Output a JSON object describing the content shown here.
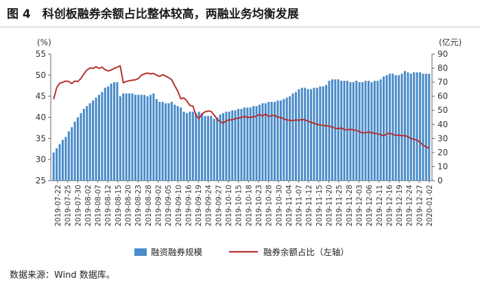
{
  "figure": {
    "title": "图 4　科创板融券余额占比整体较高，两融业务均衡发展",
    "source": "数据来源：Wind 数据库。"
  },
  "colors": {
    "bar": "#4a8cc9",
    "bar_edge": "#2f6fae",
    "line": "#b5312f",
    "axis": "#666666"
  },
  "chart_data": {
    "type": "bar+line",
    "x_tick_labels": [
      "2019-07-22",
      "2019-07-25",
      "2019-07-30",
      "2019-08-02",
      "2019-08-07",
      "2019-08-12",
      "2019-08-15",
      "2019-08-20",
      "2019-08-23",
      "2019-08-28",
      "2019-09-02",
      "2019-09-05",
      "2019-09-10",
      "2019-09-16",
      "2019-09-19",
      "2019-09-24",
      "2019-09-27",
      "2019-10-10",
      "2019-10-15",
      "2019-10-18",
      "2019-10-23",
      "2019-10-28",
      "2019-10-30",
      "2019-11-04",
      "2019-11-07",
      "2019-11-12",
      "2019-11-15",
      "2019-11-20",
      "2019-11-25",
      "2019-11-28",
      "2019-12-03",
      "2019-12-06",
      "2019-12-11",
      "2019-12-16",
      "2019-12-19",
      "2019-12-24",
      "2019-12-27",
      "2020-01-02"
    ],
    "left_axis": {
      "unit": "(%)",
      "min": 25,
      "max": 55,
      "ticks": [
        25,
        30,
        35,
        40,
        45,
        50,
        55
      ]
    },
    "right_axis": {
      "unit": "(亿元)",
      "min": 0,
      "max": 90,
      "ticks": [
        0,
        10,
        20,
        30,
        40,
        50,
        60,
        70,
        80,
        90
      ]
    },
    "series": [
      {
        "name": "融资融券规模",
        "type": "bar",
        "axis": "right",
        "values": [
          20,
          23,
          26,
          29,
          31,
          35,
          38,
          42,
          45,
          48,
          51,
          53,
          55,
          57,
          59,
          61,
          63,
          66,
          67,
          69,
          70,
          70,
          60,
          62,
          62,
          62,
          62,
          61,
          61,
          61,
          61,
          60,
          61,
          62,
          58,
          56,
          56,
          55,
          55,
          56,
          54,
          53,
          52,
          49,
          48,
          49,
          49,
          48,
          49,
          48,
          46,
          46,
          46,
          44,
          45,
          47,
          48,
          49,
          49,
          50,
          50,
          51,
          51,
          52,
          52,
          52,
          53,
          53,
          54,
          55,
          55,
          56,
          56,
          56,
          57,
          57,
          58,
          59,
          60,
          62,
          63,
          65,
          66,
          66,
          65,
          65,
          66,
          66,
          67,
          67,
          68,
          71,
          72,
          72,
          72,
          71,
          71,
          71,
          70,
          70,
          71,
          70,
          70,
          71,
          71,
          70,
          71,
          71,
          72,
          74,
          75,
          76,
          76,
          75,
          75,
          76,
          78,
          77,
          76,
          77,
          77,
          77,
          76,
          76,
          76
        ],
        "estimated": true
      },
      {
        "name": "融券余额占比（左轴）",
        "type": "line",
        "axis": "left",
        "values": [
          44.3,
          47.0,
          48.1,
          48.3,
          48.6,
          48.5,
          48.0,
          48.6,
          48.5,
          49.2,
          50.3,
          51.2,
          51.7,
          51.6,
          52.0,
          51.6,
          51.9,
          51.3,
          51.0,
          51.2,
          51.6,
          51.9,
          52.2,
          48.2,
          48.5,
          48.7,
          48.8,
          48.9,
          49.2,
          50.0,
          50.3,
          50.5,
          50.3,
          50.4,
          50.0,
          49.7,
          50.1,
          49.8,
          49.4,
          48.9,
          47.5,
          46.2,
          44.4,
          44.6,
          43.9,
          42.8,
          42.7,
          40.5,
          39.7,
          40.8,
          41.3,
          41.5,
          41.4,
          40.6,
          39.5,
          39.0,
          38.6,
          39.2,
          39.4,
          39.4,
          39.7,
          39.8,
          40.0,
          40.2,
          40.0,
          40.0,
          40.1,
          40.3,
          40.7,
          40.3,
          40.8,
          40.2,
          40.4,
          40.5,
          40.0,
          40.0,
          39.6,
          39.4,
          39.3,
          39.2,
          39.4,
          39.3,
          39.5,
          39.4,
          39.1,
          38.8,
          38.6,
          38.3,
          38.2,
          38.1,
          38.0,
          37.9,
          37.7,
          37.4,
          37.3,
          37.5,
          37.1,
          37.0,
          37.2,
          37.0,
          36.9,
          36.6,
          36.3,
          36.4,
          36.5,
          36.4,
          36.2,
          36.1,
          35.9,
          35.6,
          36.1,
          36.2,
          36.0,
          35.7,
          35.8,
          35.6,
          35.7,
          35.4,
          35.0,
          34.8,
          34.6,
          34.1,
          33.4,
          33.0,
          32.7
        ],
        "estimated": true
      }
    ]
  }
}
